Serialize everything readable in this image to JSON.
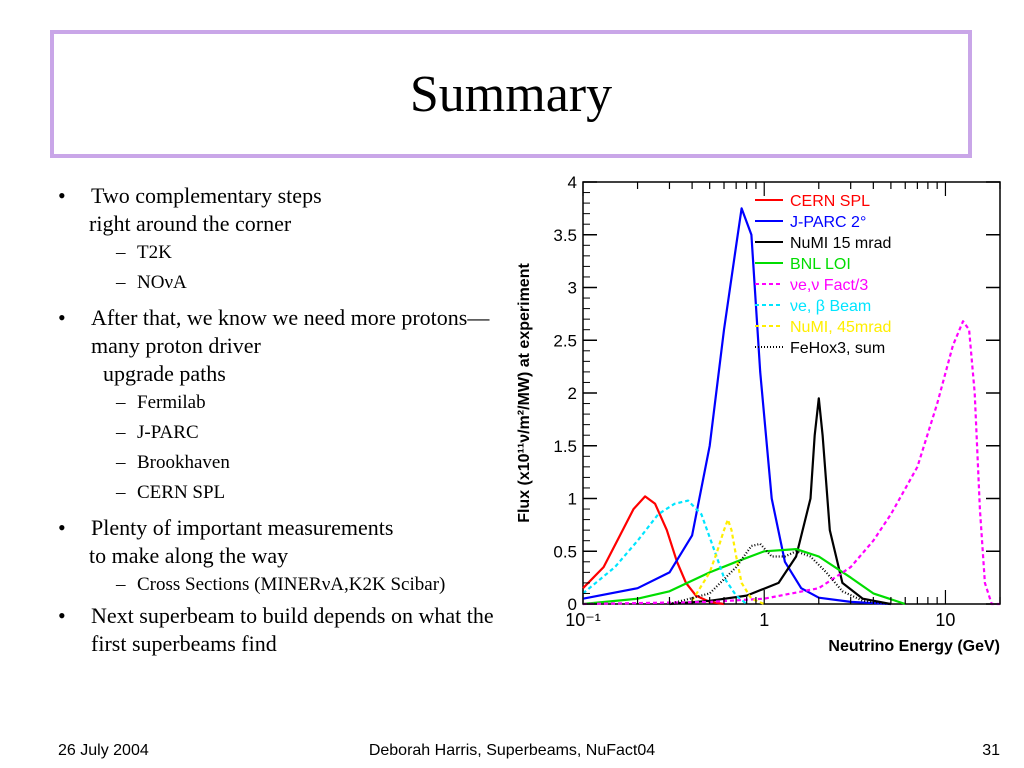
{
  "title": "Summary",
  "bullets": [
    {
      "text": "Two complementary steps",
      "cont": "right around the corner",
      "subs": [
        "T2K",
        "NOνA"
      ]
    },
    {
      "text": "After that, we know we need more protons—many proton driver",
      "cont": "upgrade paths",
      "subs": [
        "Fermilab",
        "J-PARC",
        "Brookhaven",
        "CERN SPL"
      ]
    },
    {
      "text": "Plenty of important measurements",
      "cont": "to make along the way",
      "subs": [
        "Cross Sections (MINERνA,K2K Scibar)"
      ]
    },
    {
      "text": "Next superbeam to build depends on what the first superbeams find",
      "cont": "",
      "subs": []
    }
  ],
  "footer": {
    "date": "26 July 2004",
    "center": "Deborah Harris, Superbeams, NuFact04",
    "page": "31"
  },
  "chart_data": {
    "type": "line",
    "xlabel": "Neutrino Energy (GeV)",
    "ylabel": "Flux (x10¹¹ν/m²/MW) at experiment",
    "x_scale": "log",
    "xlim": [
      0.1,
      20
    ],
    "ylim": [
      0,
      4
    ],
    "x_tick_labels": [
      {
        "v": 0.1,
        "t": "10⁻¹"
      },
      {
        "v": 1,
        "t": "1"
      },
      {
        "v": 10,
        "t": "10"
      }
    ],
    "y_ticks": [
      0,
      0.5,
      1,
      1.5,
      2,
      2.5,
      3,
      3.5,
      4
    ],
    "legend_position": "top-right",
    "series": [
      {
        "name": "CERN SPL",
        "color": "#ff0000",
        "dash": "solid",
        "x": [
          0.1,
          0.13,
          0.16,
          0.19,
          0.22,
          0.25,
          0.29,
          0.33,
          0.37,
          0.42,
          0.5,
          0.6
        ],
        "y": [
          0.15,
          0.35,
          0.65,
          0.9,
          1.02,
          0.95,
          0.7,
          0.4,
          0.2,
          0.08,
          0.02,
          0
        ]
      },
      {
        "name": "J-PARC 2°",
        "color": "#0000ff",
        "dash": "solid",
        "x": [
          0.1,
          0.2,
          0.3,
          0.4,
          0.5,
          0.6,
          0.7,
          0.75,
          0.85,
          0.95,
          1.1,
          1.3,
          1.6,
          2,
          3,
          5
        ],
        "y": [
          0.05,
          0.15,
          0.3,
          0.65,
          1.5,
          2.6,
          3.4,
          3.75,
          3.5,
          2.2,
          1.0,
          0.4,
          0.15,
          0.06,
          0.02,
          0
        ]
      },
      {
        "name": "NuMI 15 mrad",
        "color": "#000000",
        "dash": "solid",
        "x": [
          0.3,
          0.5,
          0.8,
          1.2,
          1.5,
          1.8,
          1.9,
          2.0,
          2.1,
          2.3,
          2.7,
          3.5,
          5
        ],
        "y": [
          0,
          0.03,
          0.08,
          0.2,
          0.45,
          1.0,
          1.6,
          1.95,
          1.6,
          0.7,
          0.2,
          0.05,
          0
        ]
      },
      {
        "name": "BNL LOI",
        "color": "#00dd00",
        "dash": "solid",
        "x": [
          0.1,
          0.2,
          0.3,
          0.5,
          0.7,
          1.0,
          1.5,
          2.0,
          3.0,
          4.0,
          6.0
        ],
        "y": [
          0,
          0.05,
          0.12,
          0.3,
          0.4,
          0.5,
          0.52,
          0.45,
          0.25,
          0.1,
          0
        ]
      },
      {
        "name": "νe,ν Fact/3",
        "color": "#ff00ff",
        "dash": "4,3",
        "x": [
          0.1,
          0.5,
          1,
          2,
          3,
          4,
          5,
          7,
          9,
          11,
          12.5,
          13.5,
          14.5,
          15.5,
          16.5,
          18,
          20
        ],
        "y": [
          0,
          0.02,
          0.05,
          0.15,
          0.35,
          0.6,
          0.85,
          1.3,
          1.9,
          2.45,
          2.68,
          2.6,
          2.0,
          0.9,
          0.2,
          0,
          0
        ]
      },
      {
        "name": "νe, β Beam",
        "color": "#00e5ff",
        "dash": "4,3",
        "x": [
          0.1,
          0.15,
          0.2,
          0.26,
          0.32,
          0.38,
          0.45,
          0.52,
          0.6,
          0.7,
          0.8
        ],
        "y": [
          0.1,
          0.35,
          0.6,
          0.85,
          0.95,
          0.98,
          0.85,
          0.55,
          0.25,
          0.08,
          0
        ]
      },
      {
        "name": "NuMI, 45mrad",
        "color": "#ffee00",
        "dash": "4,3",
        "x": [
          0.4,
          0.5,
          0.55,
          0.6,
          0.63,
          0.66,
          0.7,
          0.75,
          0.85,
          1.0
        ],
        "y": [
          0.03,
          0.3,
          0.5,
          0.7,
          0.8,
          0.7,
          0.45,
          0.2,
          0.05,
          0
        ]
      },
      {
        "name": "FeHox3, sum",
        "color": "#000000",
        "dash": "1,2",
        "x": [
          0.3,
          0.5,
          0.7,
          0.85,
          0.95,
          1.1,
          1.3,
          1.5,
          1.8,
          2.2,
          2.7,
          3.5,
          5
        ],
        "y": [
          0,
          0.1,
          0.35,
          0.55,
          0.57,
          0.45,
          0.45,
          0.5,
          0.45,
          0.3,
          0.12,
          0.03,
          0
        ]
      }
    ]
  }
}
